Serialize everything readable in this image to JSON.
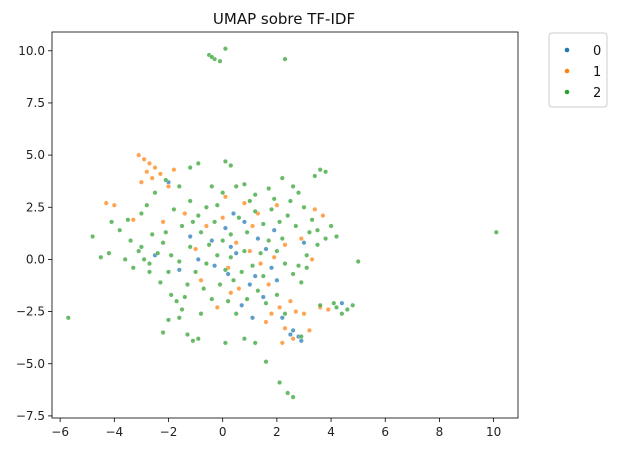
{
  "chart_data": {
    "type": "scatter",
    "title": "UMAP sobre TF-IDF",
    "xlabel": "",
    "ylabel": "",
    "xlim": [
      -6.3,
      10.9
    ],
    "ylim": [
      -7.6,
      10.9
    ],
    "xticks": [
      -6,
      -4,
      -2,
      0,
      2,
      4,
      6,
      8,
      10
    ],
    "yticks": [
      -7.5,
      -5.0,
      -2.5,
      0.0,
      2.5,
      5.0,
      7.5,
      10.0
    ],
    "xtick_labels": [
      "−6",
      "−4",
      "−2",
      "0",
      "2",
      "4",
      "6",
      "8",
      "10"
    ],
    "ytick_labels": [
      "−7.5",
      "−5.0",
      "−2.5",
      "0.0",
      "2.5",
      "5.0",
      "7.5",
      "10.0"
    ],
    "grid": false,
    "legend_position": "outside-top-right",
    "series": [
      {
        "name": "0",
        "color": "#1f77b4",
        "points": [
          [
            0.5,
            0.3
          ],
          [
            1.2,
            -0.8
          ],
          [
            1.5,
            -1.8
          ],
          [
            2.5,
            -3.6
          ],
          [
            2.9,
            -3.9
          ],
          [
            0.3,
            0.6
          ],
          [
            1.0,
            -1.2
          ],
          [
            1.8,
            -0.4
          ],
          [
            0.1,
            1.5
          ],
          [
            -0.4,
            0.9
          ],
          [
            2.2,
            -2.8
          ],
          [
            2.6,
            -3.4
          ],
          [
            -2.5,
            0.2
          ],
          [
            -1.2,
            1.1
          ],
          [
            0.8,
            1.8
          ],
          [
            1.6,
            0.5
          ],
          [
            4.4,
            -2.1
          ],
          [
            2.8,
            -3.7
          ],
          [
            0.2,
            -0.7
          ],
          [
            -0.9,
            0.0
          ],
          [
            -2.0,
            3.7
          ],
          [
            1.3,
            1.0
          ],
          [
            2.0,
            -1.0
          ],
          [
            -0.3,
            -0.3
          ],
          [
            3.0,
            0.8
          ],
          [
            0.7,
            -2.2
          ],
          [
            1.9,
            1.4
          ],
          [
            -1.6,
            -0.5
          ],
          [
            0.4,
            2.2
          ],
          [
            1.1,
            -2.8
          ]
        ]
      },
      {
        "name": "1",
        "color": "#ff7f0e",
        "points": [
          [
            -3.1,
            5.0
          ],
          [
            -2.9,
            4.8
          ],
          [
            -2.7,
            4.6
          ],
          [
            -2.5,
            4.4
          ],
          [
            -2.3,
            4.1
          ],
          [
            -2.6,
            3.9
          ],
          [
            -2.0,
            3.5
          ],
          [
            -2.8,
            4.2
          ],
          [
            -3.0,
            3.7
          ],
          [
            -4.3,
            2.7
          ],
          [
            -4.0,
            2.6
          ],
          [
            -1.8,
            4.3
          ],
          [
            2.5,
            -2.0
          ],
          [
            2.7,
            -2.5
          ],
          [
            2.1,
            -2.3
          ],
          [
            1.8,
            -2.6
          ],
          [
            1.6,
            -3.0
          ],
          [
            2.3,
            -3.3
          ],
          [
            2.6,
            -3.8
          ],
          [
            3.0,
            -2.6
          ],
          [
            3.2,
            -3.4
          ],
          [
            0.8,
            2.7
          ],
          [
            1.3,
            2.2
          ],
          [
            0.0,
            2.0
          ],
          [
            -0.6,
            1.6
          ],
          [
            1.0,
            0.4
          ],
          [
            0.3,
            -1.6
          ],
          [
            1.9,
            0.1
          ],
          [
            3.4,
            2.4
          ],
          [
            3.7,
            2.1
          ],
          [
            3.3,
            0.0
          ],
          [
            3.6,
            -2.3
          ],
          [
            3.9,
            -2.4
          ],
          [
            -0.2,
            -2.3
          ],
          [
            0.6,
            -1.4
          ],
          [
            1.4,
            -0.2
          ],
          [
            -1.4,
            2.2
          ],
          [
            -2.2,
            1.8
          ],
          [
            -3.3,
            1.9
          ],
          [
            2.9,
            1.0
          ],
          [
            0.1,
            3.0
          ],
          [
            2.0,
            2.6
          ],
          [
            -0.8,
            -1.0
          ],
          [
            1.7,
            -1.2
          ],
          [
            0.5,
            0.8
          ],
          [
            1.1,
            1.6
          ],
          [
            2.3,
            0.7
          ],
          [
            -1.0,
            0.5
          ],
          [
            0.2,
            -0.4
          ],
          [
            2.2,
            -4.0
          ]
        ]
      },
      {
        "name": "2",
        "color": "#2ca02c",
        "points": [
          [
            -0.5,
            9.8
          ],
          [
            -0.3,
            9.6
          ],
          [
            -0.1,
            9.5
          ],
          [
            -0.4,
            9.7
          ],
          [
            0.1,
            10.1
          ],
          [
            2.3,
            9.6
          ],
          [
            10.1,
            1.3
          ],
          [
            -5.7,
            -2.8
          ],
          [
            -4.8,
            1.1
          ],
          [
            -4.5,
            0.1
          ],
          [
            -4.2,
            0.3
          ],
          [
            -3.6,
            0.0
          ],
          [
            -3.1,
            0.4
          ],
          [
            -2.7,
            -0.6
          ],
          [
            -2.3,
            -1.1
          ],
          [
            -1.9,
            -1.7
          ],
          [
            -1.5,
            -2.4
          ],
          [
            -1.1,
            -3.9
          ],
          [
            -0.9,
            -3.8
          ],
          [
            0.1,
            -4.0
          ],
          [
            -2.0,
            -2.9
          ],
          [
            -2.2,
            -3.5
          ],
          [
            -1.6,
            -2.8
          ],
          [
            -1.3,
            -3.6
          ],
          [
            0.8,
            -3.8
          ],
          [
            1.2,
            -4.0
          ],
          [
            1.6,
            -4.9
          ],
          [
            2.1,
            -5.9
          ],
          [
            2.4,
            -6.4
          ],
          [
            2.6,
            -6.6
          ],
          [
            2.9,
            -3.7
          ],
          [
            3.6,
            -2.2
          ],
          [
            4.2,
            -2.3
          ],
          [
            4.6,
            -2.4
          ],
          [
            4.8,
            -2.2
          ],
          [
            4.4,
            -2.6
          ],
          [
            4.1,
            -2.1
          ],
          [
            5.0,
            -0.1
          ],
          [
            4.2,
            1.1
          ],
          [
            4.0,
            1.6
          ],
          [
            3.8,
            1.0
          ],
          [
            3.5,
            0.7
          ],
          [
            3.2,
            1.3
          ],
          [
            3.6,
            4.3
          ],
          [
            3.8,
            4.2
          ],
          [
            3.4,
            4.0
          ],
          [
            2.2,
            3.9
          ],
          [
            2.8,
            3.2
          ],
          [
            2.5,
            2.8
          ],
          [
            1.7,
            3.4
          ],
          [
            1.2,
            3.1
          ],
          [
            0.8,
            3.6
          ],
          [
            0.3,
            4.5
          ],
          [
            0.1,
            4.7
          ],
          [
            -0.4,
            3.5
          ],
          [
            -0.9,
            4.6
          ],
          [
            -1.2,
            4.4
          ],
          [
            -1.6,
            3.5
          ],
          [
            -2.1,
            3.8
          ],
          [
            -2.5,
            3.2
          ],
          [
            -2.8,
            2.6
          ],
          [
            -3.0,
            2.2
          ],
          [
            -3.5,
            1.9
          ],
          [
            -3.8,
            1.4
          ],
          [
            -4.1,
            1.8
          ],
          [
            -3.4,
            0.9
          ],
          [
            -3.0,
            0.6
          ],
          [
            -2.6,
            1.2
          ],
          [
            -2.2,
            0.8
          ],
          [
            -1.9,
            0.2
          ],
          [
            -1.6,
            -0.1
          ],
          [
            -1.2,
            0.6
          ],
          [
            -0.8,
            1.3
          ],
          [
            -0.5,
            0.7
          ],
          [
            -0.2,
            0.2
          ],
          [
            0.1,
            -0.5
          ],
          [
            0.4,
            -1.0
          ],
          [
            0.7,
            -0.6
          ],
          [
            1.1,
            -0.3
          ],
          [
            1.4,
            0.3
          ],
          [
            1.7,
            0.9
          ],
          [
            2.0,
            0.4
          ],
          [
            2.3,
            -0.2
          ],
          [
            2.6,
            -0.7
          ],
          [
            2.9,
            -1.1
          ],
          [
            3.1,
            -0.4
          ],
          [
            2.7,
            1.6
          ],
          [
            2.4,
            2.1
          ],
          [
            2.1,
            1.8
          ],
          [
            1.8,
            2.4
          ],
          [
            1.5,
            1.7
          ],
          [
            1.2,
            2.3
          ],
          [
            0.9,
            1.3
          ],
          [
            0.6,
            2.0
          ],
          [
            0.3,
            1.2
          ],
          [
            0.0,
            0.9
          ],
          [
            -0.3,
            1.8
          ],
          [
            -0.6,
            2.5
          ],
          [
            -0.9,
            2.1
          ],
          [
            -1.2,
            2.8
          ],
          [
            -1.5,
            1.6
          ],
          [
            -1.8,
            2.4
          ],
          [
            -2.1,
            1.3
          ],
          [
            -2.4,
            0.3
          ],
          [
            -2.7,
            -0.2
          ],
          [
            -1.0,
            -0.6
          ],
          [
            -0.7,
            -1.4
          ],
          [
            -0.4,
            -1.9
          ],
          [
            -0.1,
            -1.2
          ],
          [
            0.2,
            -2.0
          ],
          [
            0.5,
            -2.6
          ],
          [
            0.9,
            -1.9
          ],
          [
            1.3,
            -1.5
          ],
          [
            1.6,
            -2.1
          ],
          [
            2.0,
            -1.7
          ],
          [
            2.3,
            -2.6
          ],
          [
            -1.3,
            -1.2
          ],
          [
            -1.7,
            -2.0
          ],
          [
            -0.8,
            -2.6
          ],
          [
            -1.4,
            -1.8
          ],
          [
            0.0,
            3.2
          ],
          [
            0.5,
            3.5
          ],
          [
            1.0,
            2.8
          ],
          [
            1.9,
            2.9
          ],
          [
            2.6,
            3.5
          ],
          [
            3.0,
            2.5
          ],
          [
            3.3,
            1.9
          ],
          [
            3.5,
            1.4
          ],
          [
            3.1,
            0.2
          ],
          [
            2.8,
            -0.3
          ],
          [
            -3.3,
            -0.4
          ],
          [
            -2.9,
            0.0
          ],
          [
            -2.0,
            -0.6
          ],
          [
            -0.2,
            2.6
          ],
          [
            0.8,
            0.4
          ],
          [
            1.5,
            -0.8
          ],
          [
            -0.6,
            -0.2
          ],
          [
            0.3,
            0.1
          ],
          [
            -1.1,
            1.8
          ],
          [
            2.2,
            1.0
          ]
        ]
      }
    ]
  },
  "legend": {
    "items": [
      {
        "label": "0",
        "color": "#1f77b4"
      },
      {
        "label": "1",
        "color": "#ff7f0e"
      },
      {
        "label": "2",
        "color": "#2ca02c"
      }
    ]
  }
}
